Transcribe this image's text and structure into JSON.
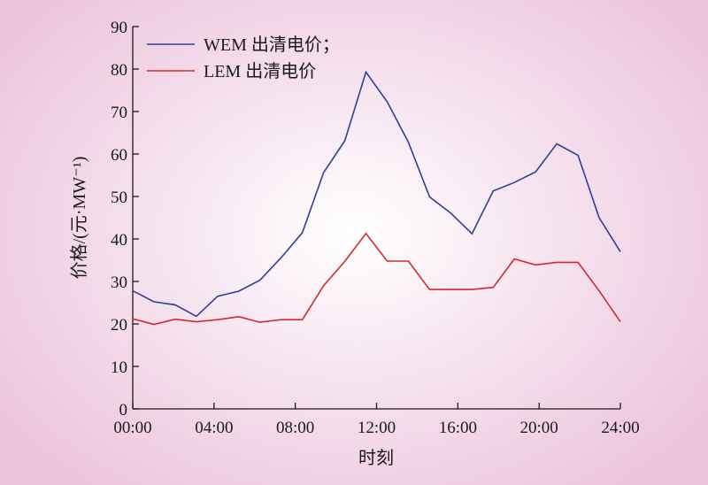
{
  "chart_data": {
    "type": "line",
    "xlabel": "时刻",
    "ylabel": "价格/(元·MW⁻¹)",
    "xlim": [
      0,
      24
    ],
    "ylim": [
      0,
      90
    ],
    "xticks": [
      "00:00",
      "04:00",
      "08:00",
      "12:00",
      "16:00",
      "20:00",
      "24:00"
    ],
    "yticks": [
      0,
      10,
      20,
      30,
      40,
      50,
      60,
      70,
      80,
      90
    ],
    "grid": false,
    "legend_position": "top-left",
    "x": [
      0,
      1,
      2,
      3,
      4,
      5,
      6,
      7,
      8,
      9,
      10,
      11,
      12,
      13,
      14,
      15,
      16,
      17,
      18,
      19,
      20,
      21,
      22,
      23
    ],
    "series": [
      {
        "name": "WEM 出清电价；",
        "color": "#2e3f97",
        "values": [
          27.8,
          25.2,
          24.5,
          21.8,
          26.5,
          27.7,
          30.3,
          35.6,
          41.5,
          55.6,
          63.1,
          79.3,
          72.3,
          62.8,
          49.9,
          46.1,
          41.2,
          51.3,
          53.3,
          55.8,
          62.4,
          59.7,
          45.0,
          37.0
        ]
      },
      {
        "name": "LEM 出清电价",
        "color": "#d5292d",
        "values": [
          21.2,
          19.9,
          21.1,
          20.5,
          21.0,
          21.7,
          20.4,
          21.0,
          21.0,
          29.0,
          34.7,
          41.3,
          34.8,
          34.8,
          28.1,
          28.1,
          28.1,
          28.6,
          35.3,
          33.9,
          34.5,
          34.5,
          27.8,
          20.5
        ]
      }
    ]
  }
}
